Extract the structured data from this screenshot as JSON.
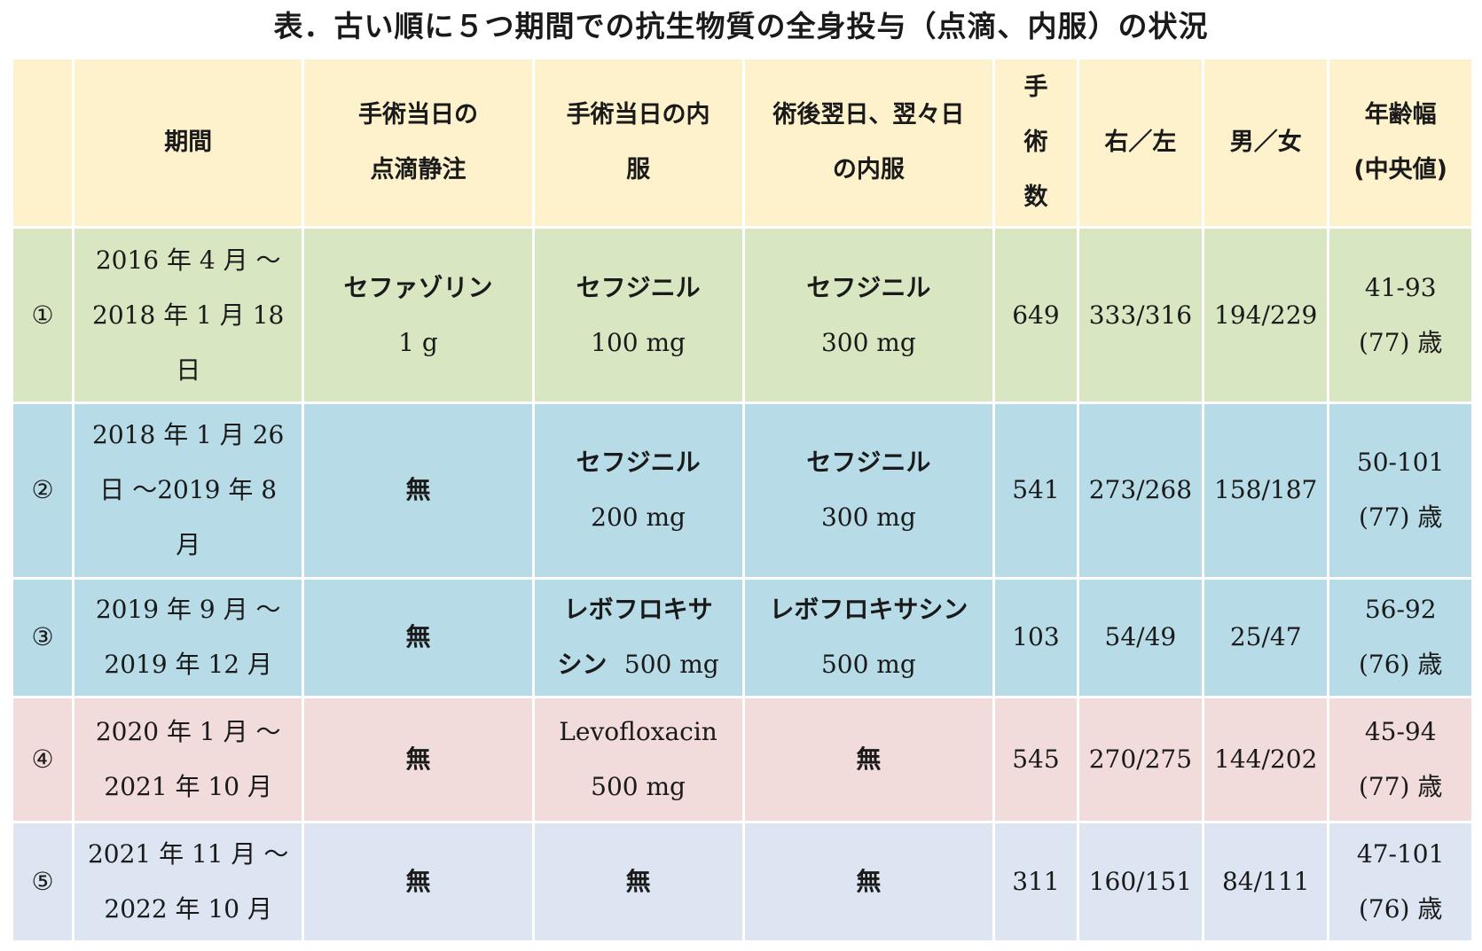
{
  "title": "表．古い順に５つ期間での抗生物質の全身投与（点滴、内服）の状況",
  "headers": {
    "blank": "",
    "period": "期間",
    "iv_day": [
      "手術当日の",
      "点滴静注"
    ],
    "oral_day": [
      "手術当日の内",
      "服"
    ],
    "oral_post": [
      "術後翌日、翌々日",
      "の内服"
    ],
    "surgeries": [
      "手",
      "術",
      "数"
    ],
    "right_left": "右／左",
    "male_female": "男／女",
    "age": [
      "年齢幅",
      "(中央値)"
    ]
  },
  "rows": [
    {
      "index": "①",
      "period": [
        "2016 年 4 月 〜",
        "2018 年 1 月 18",
        "日"
      ],
      "iv": [
        "セファゾリン",
        "1 g"
      ],
      "oral_day": [
        "セフジニル",
        "100 mg"
      ],
      "oral_post": [
        "セフジニル",
        "300 mg"
      ],
      "surgeries": "649",
      "right_left": "333/316",
      "male_female": "194/229",
      "age": [
        "41-93",
        "(77) 歳"
      ]
    },
    {
      "index": "②",
      "period": [
        "2018 年 1 月 26",
        "日 〜2019 年 8",
        "月"
      ],
      "iv": [
        "無"
      ],
      "oral_day": [
        "セフジニル",
        "200 mg"
      ],
      "oral_post": [
        "セフジニル",
        "300 mg"
      ],
      "surgeries": "541",
      "right_left": "273/268",
      "male_female": "158/187",
      "age": [
        "50-101",
        "(77) 歳"
      ]
    },
    {
      "index": "③",
      "period": [
        "2019 年 9 月 〜",
        "2019 年 12 月"
      ],
      "iv": [
        "無"
      ],
      "oral_day": [
        "レボフロキサ",
        "シン",
        "500 mg"
      ],
      "oral_post": [
        "レボフロキサシン",
        "500 mg"
      ],
      "surgeries": "103",
      "right_left": "54/49",
      "male_female": "25/47",
      "age": [
        "56-92",
        "(76) 歳"
      ]
    },
    {
      "index": "④",
      "period": [
        "2020 年 1 月 〜",
        "2021 年 10 月"
      ],
      "iv": [
        "無"
      ],
      "oral_day": [
        "Levofloxacin",
        "500 mg"
      ],
      "oral_post": [
        "無"
      ],
      "surgeries": "545",
      "right_left": "270/275",
      "male_female": "144/202",
      "age": [
        "45-94",
        "(77) 歳"
      ]
    },
    {
      "index": "⑤",
      "period": [
        "2021 年 11 月 〜",
        "2022 年 10 月"
      ],
      "iv": [
        "無"
      ],
      "oral_day": [
        "無"
      ],
      "oral_post": [
        "無"
      ],
      "surgeries": "311",
      "right_left": "160/151",
      "male_female": "84/111",
      "age": [
        "47-101",
        "(76) 歳"
      ]
    }
  ]
}
